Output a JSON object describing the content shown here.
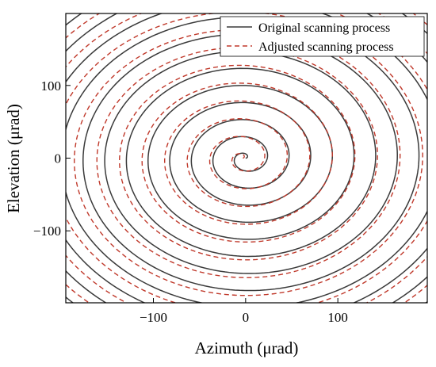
{
  "chart_data": {
    "type": "line",
    "xlabel": "Azimuth (μrad)",
    "ylabel": "Elevation (μrad)",
    "xlim": [
      -195,
      197
    ],
    "ylim": [
      -199,
      199
    ],
    "xticks": [
      -100,
      0,
      100
    ],
    "yticks": [
      -100,
      0,
      100
    ],
    "grid": false,
    "legend_placement": "top-right",
    "series": [
      {
        "name": "Original scanning process",
        "color": "#3a3a3a",
        "style": "solid",
        "spiral": {
          "center": [
            0,
            0
          ],
          "pitch": 23.5,
          "turns": 12,
          "start_angle_deg": 0
        }
      },
      {
        "name": "Adjusted scanning process",
        "color": "#c0392b",
        "style": "dashed",
        "spiral": {
          "center": [
            -3,
            0
          ],
          "pitch": 24.5,
          "turns": 12,
          "start_angle_deg": 15
        }
      }
    ]
  }
}
